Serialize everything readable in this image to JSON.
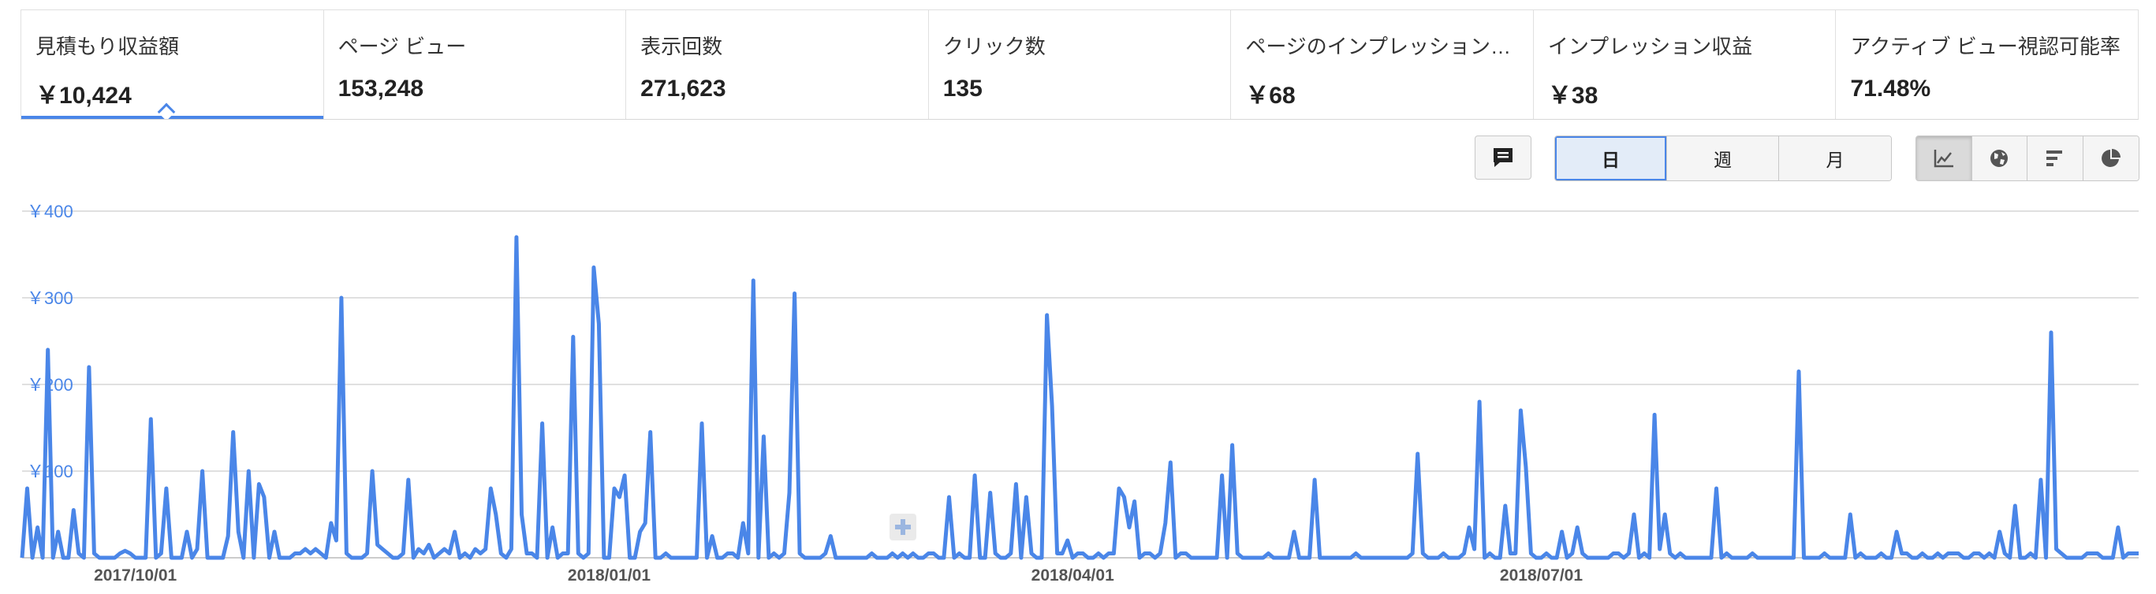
{
  "metrics": [
    {
      "label": "見積もり収益額",
      "value": "￥10,424",
      "selected": true
    },
    {
      "label": "ページ ビュー",
      "value": "153,248"
    },
    {
      "label": "表示回数",
      "value": "271,623"
    },
    {
      "label": "クリック数",
      "value": "135"
    },
    {
      "label": "ページのインプレッション…",
      "value": "￥68"
    },
    {
      "label": "インプレッション収益",
      "value": "￥38"
    },
    {
      "label": "アクティブ ビュー視認可能率",
      "value": "71.48%"
    }
  ],
  "toolbar": {
    "comment_icon": "comment-icon",
    "periods": [
      {
        "label": "日",
        "active": true
      },
      {
        "label": "週"
      },
      {
        "label": "月"
      }
    ],
    "view_types": [
      {
        "icon": "line-chart-icon",
        "active": true
      },
      {
        "icon": "globe-icon"
      },
      {
        "icon": "bar-chart-icon"
      },
      {
        "icon": "pie-chart-icon"
      }
    ]
  },
  "colors": {
    "accent": "#4a86e8",
    "line": "#4a86e8",
    "grid": "#e0e0e0"
  },
  "chart_data": {
    "type": "line",
    "series": [
      {
        "values": [
          0,
          80,
          0,
          35,
          0,
          240,
          0,
          30,
          0,
          0,
          55,
          5,
          0,
          220,
          5,
          0,
          0,
          0,
          0,
          5,
          8,
          5,
          0,
          0,
          0,
          160,
          0,
          5,
          80,
          0,
          0,
          0,
          30,
          0,
          10,
          100,
          0,
          0,
          0,
          0,
          25,
          145,
          30,
          0,
          100,
          0,
          85,
          70,
          0,
          30,
          0,
          0,
          0,
          5,
          5,
          10,
          5,
          10,
          5,
          0,
          40,
          20,
          300,
          5,
          0,
          0,
          0,
          5,
          100,
          15,
          10,
          5,
          0,
          0,
          5,
          90,
          0,
          10,
          5,
          15,
          0,
          5,
          10,
          5,
          30,
          0,
          5,
          0,
          10,
          5,
          10,
          80,
          50,
          5,
          0,
          10,
          370,
          50,
          5,
          5,
          0,
          155,
          0,
          35,
          0,
          5,
          5,
          255,
          5,
          0,
          5,
          335,
          270,
          0,
          0,
          80,
          70,
          95,
          0,
          0,
          30,
          40,
          145,
          0,
          0,
          5,
          0,
          0,
          0,
          0,
          0,
          0,
          155,
          0,
          25,
          0,
          0,
          5,
          5,
          0,
          40,
          5,
          320,
          0,
          140,
          0,
          5,
          0,
          5,
          75,
          305,
          5,
          0,
          0,
          0,
          0,
          5,
          25,
          0,
          0,
          0,
          0,
          0,
          0,
          0,
          5,
          0,
          0,
          0,
          5,
          0,
          5,
          0,
          5,
          0,
          0,
          5,
          5,
          0,
          0,
          70,
          0,
          5,
          0,
          0,
          95,
          0,
          0,
          75,
          5,
          0,
          0,
          5,
          85,
          0,
          70,
          5,
          0,
          0,
          280,
          175,
          5,
          5,
          20,
          0,
          5,
          5,
          0,
          0,
          5,
          0,
          5,
          5,
          80,
          70,
          35,
          65,
          0,
          5,
          5,
          0,
          5,
          40,
          110,
          0,
          5,
          5,
          0,
          0,
          0,
          0,
          0,
          0,
          95,
          0,
          130,
          5,
          0,
          0,
          0,
          0,
          0,
          5,
          0,
          0,
          0,
          0,
          30,
          0,
          0,
          0,
          90,
          0,
          0,
          0,
          0,
          0,
          0,
          0,
          5,
          0,
          0,
          0,
          0,
          0,
          0,
          0,
          0,
          0,
          0,
          5,
          120,
          5,
          0,
          0,
          0,
          5,
          0,
          0,
          0,
          5,
          35,
          10,
          180,
          0,
          5,
          0,
          0,
          60,
          5,
          5,
          170,
          105,
          5,
          0,
          0,
          5,
          0,
          0,
          30,
          0,
          5,
          35,
          5,
          0,
          0,
          0,
          0,
          0,
          5,
          5,
          0,
          5,
          50,
          0,
          5,
          0,
          165,
          10,
          50,
          5,
          0,
          5,
          0,
          0,
          0,
          0,
          0,
          0,
          80,
          0,
          5,
          0,
          0,
          0,
          0,
          5,
          0,
          0,
          0,
          0,
          0,
          0,
          0,
          0,
          215,
          0,
          0,
          0,
          0,
          5,
          0,
          0,
          0,
          0,
          50,
          0,
          5,
          0,
          0,
          0,
          5,
          0,
          0,
          30,
          5,
          5,
          0,
          0,
          5,
          0,
          0,
          5,
          0,
          5,
          5,
          5,
          0,
          0,
          5,
          5,
          0,
          5,
          0,
          30,
          5,
          0,
          60,
          0,
          0,
          5,
          0,
          90,
          0,
          260,
          10,
          5,
          0,
          0,
          0,
          0,
          5,
          5,
          5,
          0,
          0,
          0,
          35,
          0,
          5,
          5,
          5
        ]
      }
    ],
    "y_ticks": [
      "￥100",
      "￥200",
      "￥300",
      "￥400"
    ],
    "ylim": [
      0,
      400
    ],
    "x_labels": [
      "2017/10/01",
      "2018/01/01",
      "2018/04/01",
      "2018/07/01"
    ],
    "x_label_index": [
      22,
      114,
      204,
      295
    ],
    "grid": true
  }
}
